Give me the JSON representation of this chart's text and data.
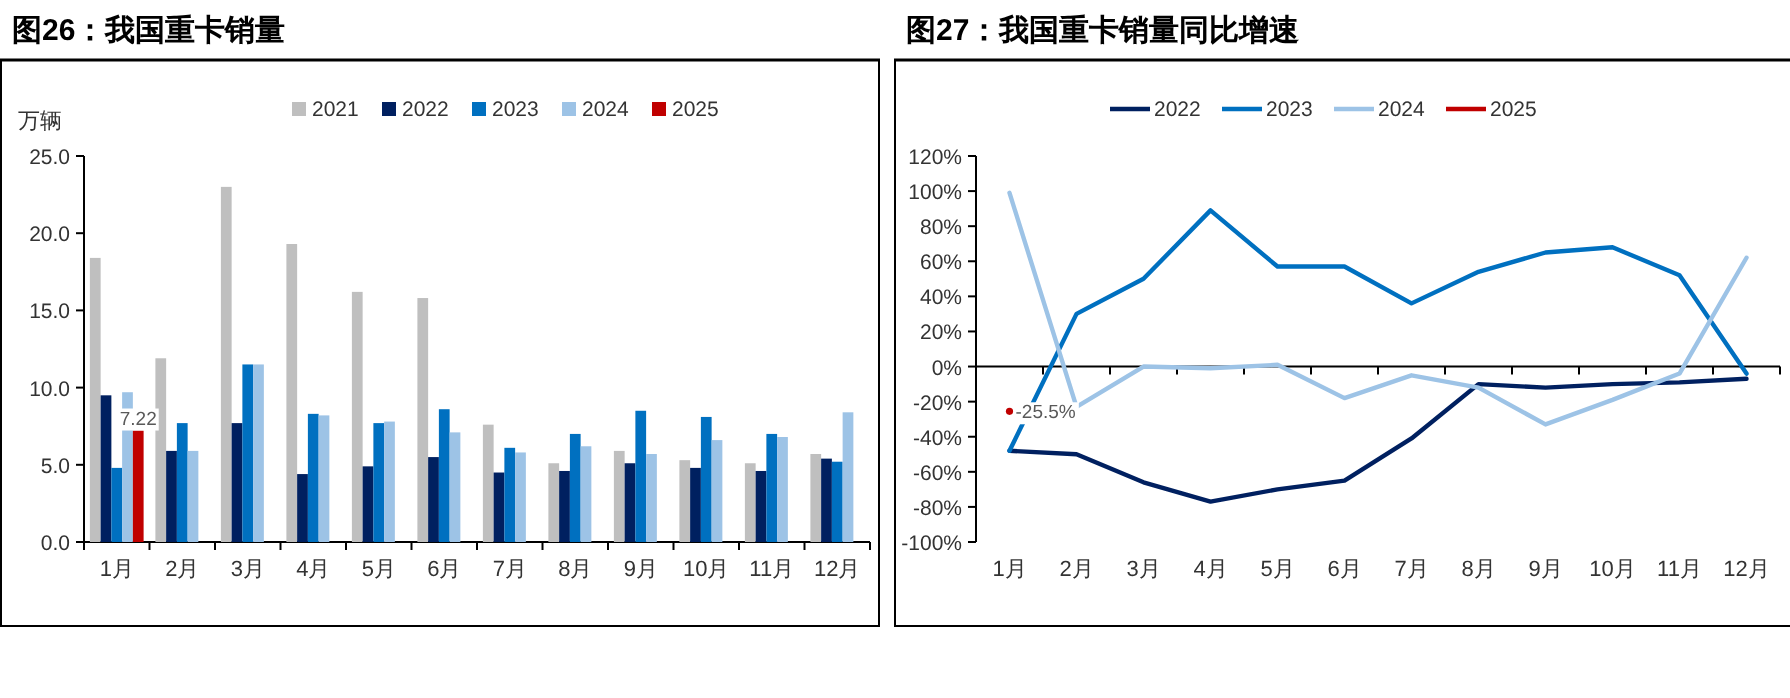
{
  "chart_data": [
    {
      "type": "bar",
      "title": "图26：我国重卡销量",
      "ylabel": "万辆",
      "categories": [
        "1月",
        "2月",
        "3月",
        "4月",
        "5月",
        "6月",
        "7月",
        "8月",
        "9月",
        "10月",
        "11月",
        "12月"
      ],
      "series": [
        {
          "name": "2021",
          "color": "#bfbfbf",
          "values": [
            18.4,
            11.9,
            23.0,
            19.3,
            16.2,
            15.8,
            7.6,
            5.1,
            5.9,
            5.3,
            5.1,
            5.7
          ]
        },
        {
          "name": "2022",
          "color": "#002060",
          "values": [
            9.5,
            5.9,
            7.7,
            4.4,
            4.9,
            5.5,
            4.5,
            4.6,
            5.1,
            4.8,
            4.6,
            5.4
          ]
        },
        {
          "name": "2023",
          "color": "#0070c0",
          "values": [
            4.8,
            7.7,
            11.5,
            8.3,
            7.7,
            8.6,
            6.1,
            7.0,
            8.5,
            8.1,
            7.0,
            5.2
          ]
        },
        {
          "name": "2024",
          "color": "#9dc3e6",
          "values": [
            9.7,
            5.9,
            11.5,
            8.2,
            7.8,
            7.1,
            5.8,
            6.2,
            5.7,
            6.6,
            6.8,
            8.4
          ]
        },
        {
          "name": "2025",
          "color": "#c00000",
          "values": [
            7.22,
            null,
            null,
            null,
            null,
            null,
            null,
            null,
            null,
            null,
            null,
            null
          ],
          "value_labels": [
            "7.22",
            null,
            null,
            null,
            null,
            null,
            null,
            null,
            null,
            null,
            null,
            null
          ]
        }
      ],
      "ylim": [
        0,
        25
      ],
      "yticks": [
        {
          "value": 0,
          "label": "0.0"
        },
        {
          "value": 5,
          "label": "5.0"
        },
        {
          "value": 10,
          "label": "10.0"
        },
        {
          "value": 15,
          "label": "15.0"
        },
        {
          "value": 20,
          "label": "20.0"
        },
        {
          "value": 25,
          "label": "25.0"
        }
      ],
      "legend": "top"
    },
    {
      "type": "line",
      "title": "图27：我国重卡销量同比增速",
      "categories": [
        "1月",
        "2月",
        "3月",
        "4月",
        "5月",
        "6月",
        "7月",
        "8月",
        "9月",
        "10月",
        "11月",
        "12月"
      ],
      "series": [
        {
          "name": "2022",
          "color": "#002060",
          "values": [
            -48,
            -50,
            -66,
            -77,
            -70,
            -65,
            -41,
            -10,
            -12,
            -10,
            -9,
            -7
          ]
        },
        {
          "name": "2023",
          "color": "#0070c0",
          "values": [
            -48,
            30,
            50,
            89,
            57,
            57,
            36,
            54,
            65,
            68,
            52,
            -4
          ]
        },
        {
          "name": "2024",
          "color": "#9dc3e6",
          "values": [
            99,
            -23,
            0,
            -1,
            1,
            -18,
            -5,
            -12,
            -33,
            -19,
            -4,
            62
          ]
        },
        {
          "name": "2025",
          "color": "#c00000",
          "marker": "circle",
          "values": [
            -25.5,
            null,
            null,
            null,
            null,
            null,
            null,
            null,
            null,
            null,
            null,
            null
          ],
          "value_labels": [
            "-25.5%",
            null,
            null,
            null,
            null,
            null,
            null,
            null,
            null,
            null,
            null,
            null
          ]
        }
      ],
      "ylim": [
        -100,
        120
      ],
      "yticks": [
        {
          "value": -100,
          "label": "-100%"
        },
        {
          "value": -80,
          "label": "-80%"
        },
        {
          "value": -60,
          "label": "-60%"
        },
        {
          "value": -40,
          "label": "-40%"
        },
        {
          "value": -20,
          "label": "-20%"
        },
        {
          "value": 0,
          "label": "0%"
        },
        {
          "value": 20,
          "label": "20%"
        },
        {
          "value": 40,
          "label": "40%"
        },
        {
          "value": 60,
          "label": "60%"
        },
        {
          "value": 80,
          "label": "80%"
        },
        {
          "value": 100,
          "label": "100%"
        },
        {
          "value": 120,
          "label": "120%"
        }
      ],
      "legend": "top",
      "line_style": "solid"
    }
  ]
}
